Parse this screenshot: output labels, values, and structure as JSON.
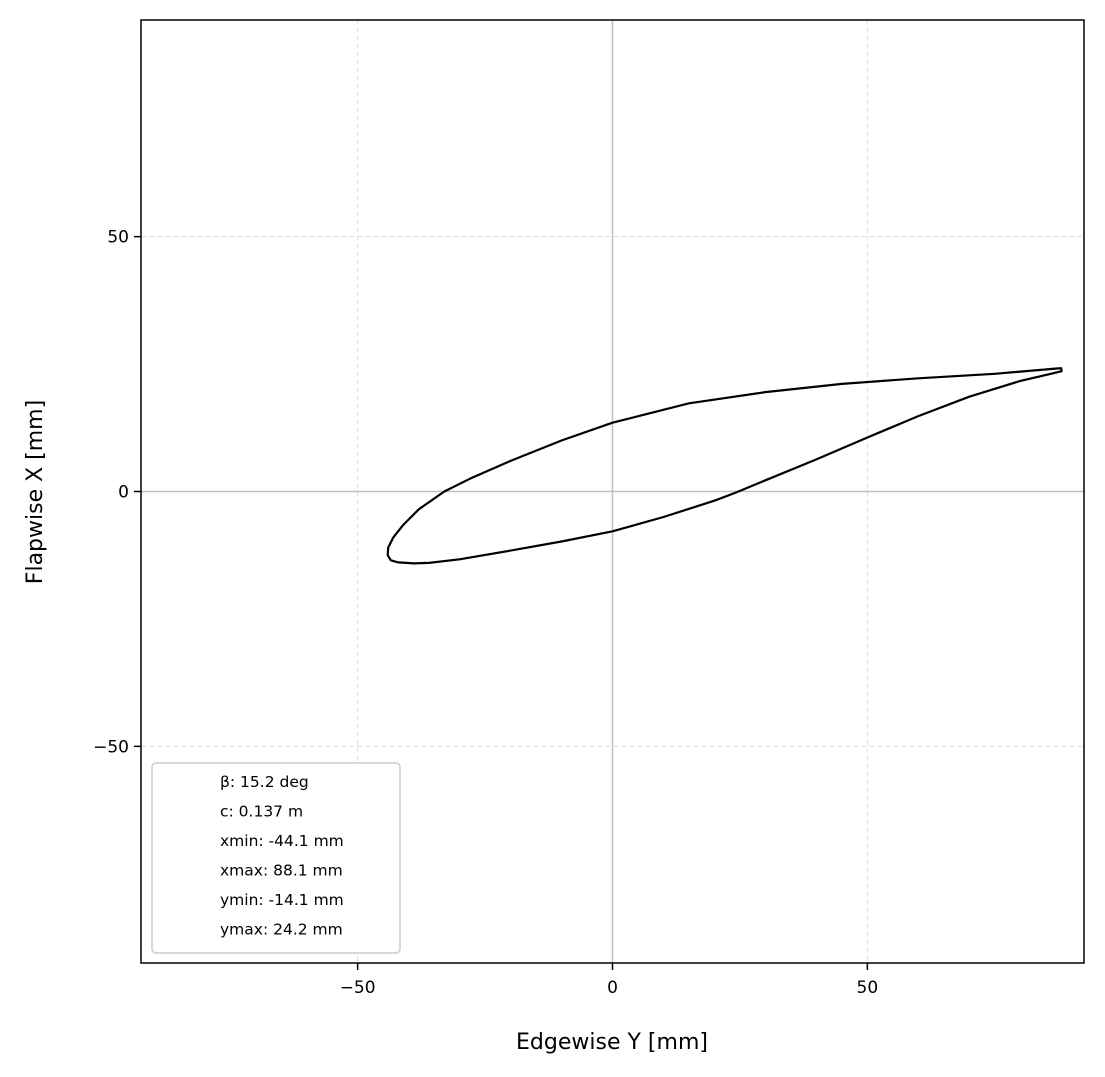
{
  "chart_data": {
    "type": "line",
    "title": "",
    "xlabel": "Edgewise Y [mm]",
    "ylabel": "Flapwise X [mm]",
    "xlim": [
      -92.5,
      92.5
    ],
    "ylim": [
      -92.5,
      92.5
    ],
    "xticks": [
      {
        "value": -50,
        "label": "−50"
      },
      {
        "value": 0,
        "label": "0"
      },
      {
        "value": 50,
        "label": "50"
      }
    ],
    "yticks": [
      {
        "value": -50,
        "label": "−50"
      },
      {
        "value": 0,
        "label": "0"
      },
      {
        "value": 50,
        "label": "50"
      }
    ],
    "grid": true,
    "grid_style": "dashed",
    "zero_lines": true,
    "legend_placement": "lower-left",
    "legend_entries": [
      "β: 15.2 deg",
      "c: 0.137 m",
      "xmin: -44.1 mm",
      "xmax: 88.1 mm",
      "ymin: -14.1 mm",
      "ymax: 24.2 mm"
    ],
    "series": [
      {
        "color": "#000000",
        "x": [
          88.0,
          75.0,
          60.0,
          45.0,
          30.0,
          15.0,
          0.0,
          -10.0,
          -20.0,
          -28.0,
          -33.0,
          -38.0,
          -41.0,
          -43.0,
          -44.0,
          -44.1,
          -43.5,
          -42.0,
          -39.0,
          -36.0,
          -30.0,
          -20.0,
          -10.0,
          0.0,
          10.0,
          20.0,
          24.0,
          30.0,
          40.0,
          50.0,
          60.0,
          70.0,
          80.0,
          86.0,
          88.1,
          88.0
        ],
        "y": [
          24.2,
          23.1,
          22.2,
          21.1,
          19.5,
          17.3,
          13.5,
          10.0,
          6.0,
          2.5,
          0.0,
          -3.5,
          -6.5,
          -9.0,
          -11.0,
          -12.5,
          -13.5,
          -13.9,
          -14.1,
          -14.0,
          -13.3,
          -11.6,
          -9.8,
          -7.8,
          -5.0,
          -1.8,
          -0.3,
          2.2,
          6.3,
          10.6,
          14.8,
          18.6,
          21.7,
          23.1,
          23.6,
          24.2
        ]
      }
    ]
  }
}
